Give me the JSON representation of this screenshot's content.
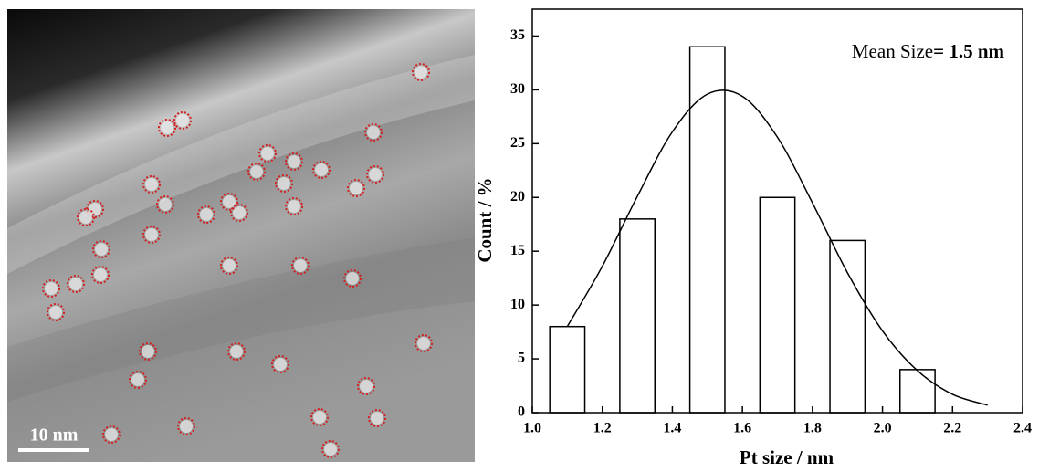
{
  "image": {
    "scale_bar": "10 nm"
  },
  "chart_data": {
    "type": "bar",
    "x": [
      1.1,
      1.3,
      1.5,
      1.7,
      1.9,
      2.1
    ],
    "values": [
      8,
      18,
      34,
      20,
      16,
      4
    ],
    "bar_width": 0.1,
    "color": "#ffffff",
    "edge_color": "#000000",
    "fit": {
      "x": [
        1.1,
        1.2,
        1.3,
        1.4,
        1.5,
        1.6,
        1.7,
        1.8,
        1.9,
        2.0,
        2.1,
        2.2,
        2.3
      ],
      "values": [
        8.0,
        13.6,
        20.1,
        26.1,
        29.6,
        29.4,
        25.6,
        19.5,
        13.0,
        7.6,
        3.9,
        1.7,
        0.7
      ]
    },
    "annotation": [
      "Mean Size",
      "= 1.5 nm"
    ],
    "xlabel": "Pt size / nm",
    "ylabel": "Count / %",
    "xlim": [
      1.0,
      2.4
    ],
    "ylim": [
      0,
      37.5
    ],
    "xticks": [
      {
        "value": 1,
        "label": "1.0"
      },
      1.2,
      1.4,
      1.6,
      1.8,
      {
        "value": 2,
        "label": "2.0"
      },
      2.2,
      2.4
    ],
    "yticks": [
      0,
      5,
      10,
      15,
      20,
      25,
      30,
      35
    ]
  }
}
